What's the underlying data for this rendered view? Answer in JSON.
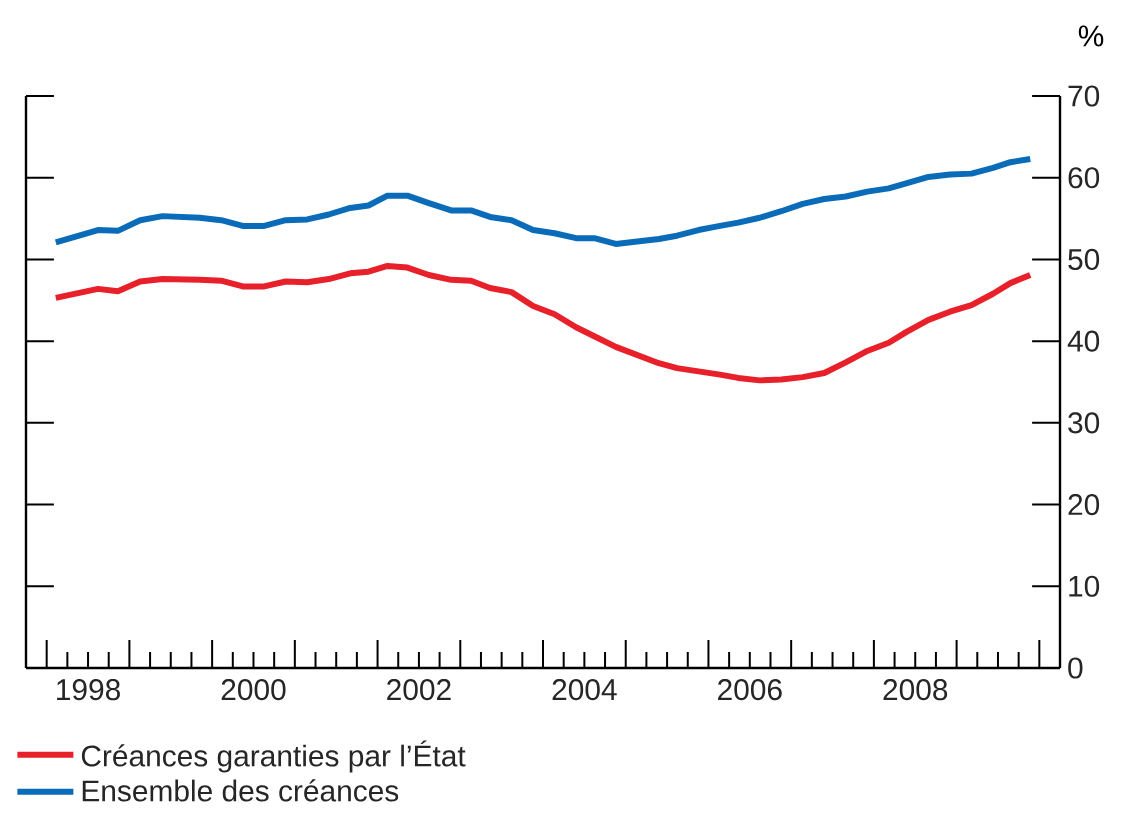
{
  "chart_data": {
    "type": "line",
    "ylabel": "%",
    "x": [
      1998.11,
      1998.62,
      1998.86,
      1999.13,
      1999.4,
      1999.85,
      2000.11,
      2000.37,
      2000.63,
      2000.89,
      2001.15,
      2001.41,
      2001.67,
      2001.89,
      2002.12,
      2002.36,
      2002.62,
      2002.89,
      2003.13,
      2003.36,
      2003.62,
      2003.88,
      2004.14,
      2004.4,
      2004.62,
      2004.88,
      2005.14,
      2005.4,
      2005.62,
      2005.88,
      2006.14,
      2006.36,
      2006.62,
      2006.88,
      2007.14,
      2007.4,
      2007.66,
      2007.92,
      2008.18,
      2008.39,
      2008.66,
      2008.92,
      2009.18,
      2009.44,
      2009.65,
      2009.89
    ],
    "series": [
      {
        "name": "Créances garanties par l’État",
        "color": "#e8202a",
        "values": [
          45.3,
          46.4,
          46.1,
          47.3,
          47.6,
          47.5,
          47.4,
          46.7,
          46.7,
          47.3,
          47.2,
          47.6,
          48.3,
          48.5,
          49.2,
          49.0,
          48.1,
          47.5,
          47.4,
          46.5,
          46.0,
          44.3,
          43.3,
          41.7,
          40.6,
          39.3,
          38.3,
          37.3,
          36.7,
          36.3,
          35.9,
          35.5,
          35.2,
          35.3,
          35.6,
          36.1,
          37.4,
          38.8,
          39.8,
          41.1,
          42.6,
          43.6,
          44.4,
          45.8,
          47.1,
          48.1
        ]
      },
      {
        "name": "Ensemble des créances",
        "color": "#0a6bb8",
        "values": [
          52.1,
          53.6,
          53.5,
          54.8,
          55.3,
          55.1,
          54.8,
          54.1,
          54.1,
          54.8,
          54.9,
          55.5,
          56.3,
          56.6,
          57.8,
          57.8,
          56.9,
          56.0,
          56.0,
          55.2,
          54.8,
          53.6,
          53.2,
          52.6,
          52.6,
          51.9,
          52.2,
          52.5,
          52.9,
          53.6,
          54.1,
          54.5,
          55.1,
          55.9,
          56.8,
          57.4,
          57.7,
          58.3,
          58.7,
          59.3,
          60.1,
          60.4,
          60.5,
          61.2,
          61.9,
          62.3
        ]
      }
    ],
    "xlim": [
      1997.75,
      2010.25
    ],
    "xticks": [
      {
        "value": 1998,
        "label": null
      },
      {
        "value": 1998.25,
        "label": null
      },
      {
        "value": 1998.5,
        "label": "1998"
      },
      {
        "value": 1998.75,
        "label": null
      },
      {
        "value": 1999,
        "label": null
      },
      {
        "value": 1999.25,
        "label": null
      },
      {
        "value": 1999.5,
        "label": null
      },
      {
        "value": 1999.75,
        "label": null
      },
      {
        "value": 2000,
        "label": null
      },
      {
        "value": 2000.25,
        "label": null
      },
      {
        "value": 2000.5,
        "label": "2000"
      },
      {
        "value": 2000.75,
        "label": null
      },
      {
        "value": 2001,
        "label": null
      },
      {
        "value": 2001.25,
        "label": null
      },
      {
        "value": 2001.5,
        "label": null
      },
      {
        "value": 2001.75,
        "label": null
      },
      {
        "value": 2002,
        "label": null
      },
      {
        "value": 2002.25,
        "label": null
      },
      {
        "value": 2002.5,
        "label": "2002"
      },
      {
        "value": 2002.75,
        "label": null
      },
      {
        "value": 2003,
        "label": null
      },
      {
        "value": 2003.25,
        "label": null
      },
      {
        "value": 2003.5,
        "label": null
      },
      {
        "value": 2003.75,
        "label": null
      },
      {
        "value": 2004,
        "label": null
      },
      {
        "value": 2004.25,
        "label": null
      },
      {
        "value": 2004.5,
        "label": "2004"
      },
      {
        "value": 2004.75,
        "label": null
      },
      {
        "value": 2005,
        "label": null
      },
      {
        "value": 2005.25,
        "label": null
      },
      {
        "value": 2005.5,
        "label": null
      },
      {
        "value": 2005.75,
        "label": null
      },
      {
        "value": 2006,
        "label": null
      },
      {
        "value": 2006.25,
        "label": null
      },
      {
        "value": 2006.5,
        "label": "2006"
      },
      {
        "value": 2006.75,
        "label": null
      },
      {
        "value": 2007,
        "label": null
      },
      {
        "value": 2007.25,
        "label": null
      },
      {
        "value": 2007.5,
        "label": null
      },
      {
        "value": 2007.75,
        "label": null
      },
      {
        "value": 2008,
        "label": null
      },
      {
        "value": 2008.25,
        "label": null
      },
      {
        "value": 2008.5,
        "label": "2008"
      },
      {
        "value": 2008.75,
        "label": null
      },
      {
        "value": 2009,
        "label": null
      },
      {
        "value": 2009.25,
        "label": null
      },
      {
        "value": 2009.5,
        "label": null
      },
      {
        "value": 2009.75,
        "label": null
      },
      {
        "value": 2010,
        "label": null
      }
    ],
    "ylim": [
      0,
      70
    ],
    "yticks": [
      0,
      10,
      20,
      30,
      40,
      50,
      60,
      70
    ],
    "legend": "bottom",
    "marker": "none",
    "line_style": "solid",
    "grid": false
  }
}
